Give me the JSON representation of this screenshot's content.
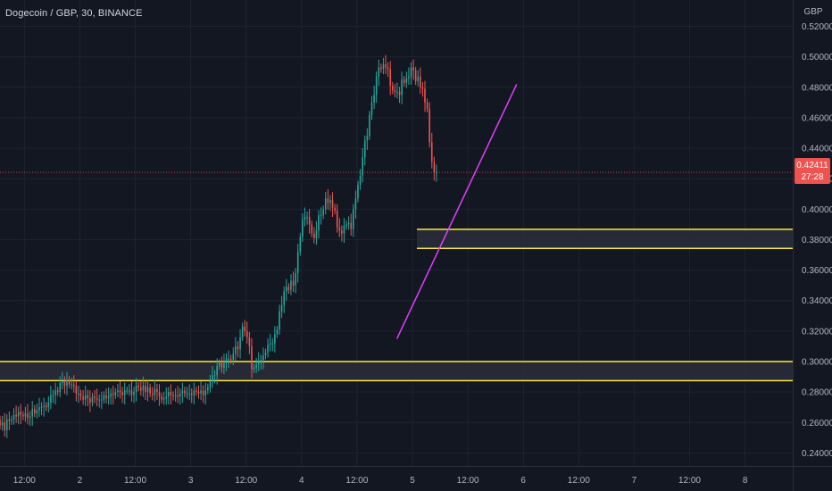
{
  "header": {
    "title": "Dogecoin / GBP, 30, BINANCE",
    "currency": "GBP"
  },
  "last_price": {
    "value": "0.42411",
    "countdown": "27:28"
  },
  "colors": {
    "background": "#131722",
    "grid": "#1f2330",
    "axis_text": "#b2b5be",
    "candle_up": "#26a69a",
    "candle_down": "#ef5350",
    "zone_line": "#ffeb3b",
    "zone_fill": "#2a2e39",
    "trendline": "#e040fb",
    "price_line": "#ef5350"
  },
  "chart_data": {
    "type": "candlestick",
    "title": "Dogecoin / GBP, 30, BINANCE",
    "ylabel": "GBP",
    "y_axis_side": "right",
    "ylim": [
      0.225,
      0.525
    ],
    "y_ticks": [
      "0.24000",
      "0.26000",
      "0.28000",
      "0.30000",
      "0.32000",
      "0.34000",
      "0.36000",
      "0.38000",
      "0.40000",
      "0.42000",
      "0.44000",
      "0.46000",
      "0.48000",
      "0.50000",
      "0.52000"
    ],
    "x_ticks": [
      "12:00",
      "2",
      "12:00",
      "3",
      "12:00",
      "4",
      "12:00",
      "5",
      "12:00",
      "6",
      "12:00",
      "7",
      "12:00",
      "8"
    ],
    "x_tick_days": [
      0.5,
      1,
      1.5,
      2,
      2.5,
      3,
      3.5,
      4,
      4.5,
      5,
      5.5,
      6,
      6.5,
      7
    ],
    "xlim_days": [
      0.28,
      7.43
    ],
    "grid": true,
    "last_price": 0.42411,
    "horizontal_zones": [
      {
        "top": 0.3868,
        "bottom": 0.3743,
        "start_day": 4.04
      },
      {
        "top": 0.3,
        "bottom": 0.2875,
        "start_day": 0.28
      }
    ],
    "trendline": {
      "x1_day": 3.86,
      "y1": 0.315,
      "x2_day": 4.94,
      "y2": 0.482
    },
    "series": [
      {
        "x_start_day": 0.28,
        "step_days": 0.02083,
        "open": [
          0.262,
          0.258,
          0.26,
          0.255,
          0.262,
          0.261,
          0.262,
          0.265,
          0.264,
          0.267,
          0.265,
          0.264,
          0.266,
          0.263,
          0.264,
          0.269,
          0.266,
          0.268,
          0.27,
          0.27,
          0.271,
          0.27,
          0.273,
          0.278,
          0.278,
          0.281,
          0.28,
          0.286,
          0.287,
          0.284,
          0.288,
          0.285,
          0.285,
          0.284,
          0.279,
          0.279,
          0.277,
          0.275,
          0.278,
          0.276,
          0.273,
          0.277,
          0.276,
          0.275,
          0.275,
          0.275,
          0.278,
          0.276,
          0.277,
          0.279,
          0.278,
          0.28,
          0.281,
          0.28,
          0.278,
          0.281,
          0.281,
          0.281,
          0.278,
          0.28,
          0.284,
          0.283,
          0.281,
          0.284,
          0.28,
          0.283,
          0.279,
          0.278,
          0.282,
          0.28,
          0.277,
          0.275,
          0.276,
          0.277,
          0.28,
          0.278,
          0.277,
          0.278,
          0.277,
          0.279,
          0.281,
          0.279,
          0.279,
          0.279,
          0.278,
          0.281,
          0.28,
          0.279,
          0.281,
          0.278,
          0.281,
          0.283,
          0.287,
          0.291,
          0.291,
          0.297,
          0.299,
          0.296,
          0.299,
          0.302,
          0.302,
          0.301,
          0.305,
          0.31,
          0.308,
          0.316,
          0.323,
          0.32,
          0.316,
          0.31,
          0.295,
          0.296,
          0.298,
          0.3,
          0.301,
          0.304,
          0.306,
          0.311,
          0.312,
          0.312,
          0.318,
          0.321,
          0.333,
          0.337,
          0.346,
          0.349,
          0.347,
          0.353,
          0.35,
          0.358,
          0.372,
          0.382,
          0.393,
          0.395,
          0.395,
          0.39,
          0.384,
          0.381,
          0.386,
          0.396,
          0.396,
          0.4,
          0.407,
          0.404,
          0.406,
          0.401,
          0.399,
          0.388,
          0.386,
          0.384,
          0.389,
          0.39,
          0.391,
          0.387,
          0.4,
          0.407,
          0.416,
          0.422,
          0.434,
          0.445,
          0.448,
          0.462,
          0.47,
          0.475,
          0.487,
          0.493,
          0.492,
          0.495,
          0.493,
          0.492,
          0.481,
          0.478,
          0.477,
          0.477,
          0.475,
          0.485,
          0.483,
          0.486,
          0.487,
          0.493,
          0.491,
          0.484,
          0.487,
          0.48,
          0.479,
          0.47,
          0.466,
          0.444,
          0.431,
          0.424
        ],
        "close": [
          0.258,
          0.26,
          0.255,
          0.262,
          0.261,
          0.262,
          0.265,
          0.264,
          0.267,
          0.265,
          0.264,
          0.266,
          0.263,
          0.264,
          0.269,
          0.266,
          0.268,
          0.27,
          0.27,
          0.271,
          0.27,
          0.273,
          0.278,
          0.278,
          0.281,
          0.28,
          0.286,
          0.287,
          0.284,
          0.288,
          0.285,
          0.285,
          0.284,
          0.279,
          0.279,
          0.277,
          0.275,
          0.278,
          0.276,
          0.273,
          0.277,
          0.276,
          0.275,
          0.275,
          0.275,
          0.278,
          0.276,
          0.277,
          0.279,
          0.278,
          0.28,
          0.281,
          0.28,
          0.278,
          0.281,
          0.281,
          0.281,
          0.278,
          0.28,
          0.284,
          0.283,
          0.281,
          0.284,
          0.28,
          0.283,
          0.279,
          0.278,
          0.282,
          0.28,
          0.277,
          0.275,
          0.276,
          0.277,
          0.28,
          0.278,
          0.277,
          0.278,
          0.277,
          0.279,
          0.281,
          0.279,
          0.279,
          0.279,
          0.278,
          0.281,
          0.28,
          0.279,
          0.281,
          0.278,
          0.281,
          0.283,
          0.287,
          0.291,
          0.291,
          0.297,
          0.299,
          0.296,
          0.299,
          0.302,
          0.302,
          0.301,
          0.305,
          0.31,
          0.308,
          0.316,
          0.323,
          0.32,
          0.316,
          0.31,
          0.295,
          0.296,
          0.298,
          0.3,
          0.301,
          0.304,
          0.306,
          0.311,
          0.312,
          0.312,
          0.318,
          0.321,
          0.333,
          0.337,
          0.346,
          0.349,
          0.347,
          0.353,
          0.35,
          0.358,
          0.372,
          0.382,
          0.393,
          0.395,
          0.395,
          0.39,
          0.384,
          0.381,
          0.386,
          0.396,
          0.396,
          0.4,
          0.407,
          0.404,
          0.406,
          0.401,
          0.399,
          0.388,
          0.386,
          0.384,
          0.389,
          0.39,
          0.391,
          0.387,
          0.4,
          0.407,
          0.416,
          0.422,
          0.434,
          0.445,
          0.448,
          0.462,
          0.47,
          0.475,
          0.487,
          0.493,
          0.492,
          0.495,
          0.493,
          0.492,
          0.481,
          0.478,
          0.477,
          0.477,
          0.475,
          0.485,
          0.483,
          0.486,
          0.487,
          0.493,
          0.491,
          0.484,
          0.487,
          0.48,
          0.479,
          0.47,
          0.466,
          0.444,
          0.431,
          0.424,
          0.424
        ]
      }
    ]
  }
}
